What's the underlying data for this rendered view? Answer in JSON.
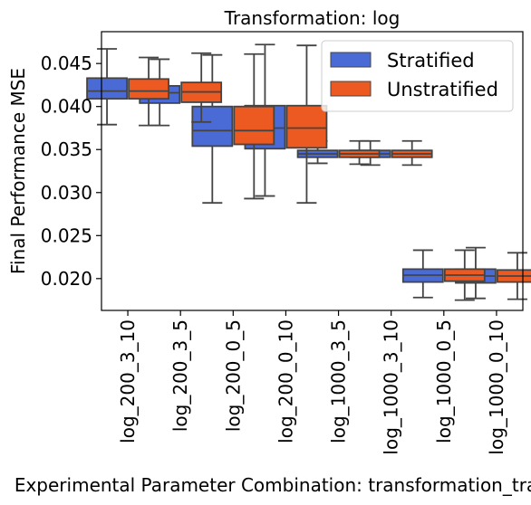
{
  "chart_data": {
    "type": "boxplot",
    "title": "Transformation: log",
    "xlabel": "Experimental Parameter Combination: transformation_tra",
    "ylabel": "Final Performance MSE",
    "ylim": [
      0.0163,
      0.0487
    ],
    "yticks": [
      "0.020",
      "0.025",
      "0.030",
      "0.035",
      "0.040",
      "0.045"
    ],
    "categories": [
      "log_200_3_10",
      "log_200_3_5",
      "log_200_0_5",
      "log_200_0_10",
      "log_1000_3_5",
      "log_1000_3_10",
      "log_1000_0_5",
      "log_1000_0_10"
    ],
    "legend_position": "top-right",
    "series": [
      {
        "name": "Stratified",
        "color": "#4a6bd6",
        "boxes": [
          {
            "whislo": 0.0379,
            "q1": 0.0409,
            "med": 0.0418,
            "q3": 0.0433,
            "whishi": 0.0467
          },
          {
            "whislo": 0.0378,
            "q1": 0.0404,
            "med": 0.0416,
            "q3": 0.0424,
            "whishi": 0.0455
          },
          {
            "whislo": 0.0288,
            "q1": 0.0354,
            "med": 0.0372,
            "q3": 0.04,
            "whishi": 0.046
          },
          {
            "whislo": 0.0296,
            "q1": 0.0351,
            "med": 0.0375,
            "q3": 0.0401,
            "whishi": 0.0472
          },
          {
            "whislo": 0.0334,
            "q1": 0.0341,
            "med": 0.0345,
            "q3": 0.0349,
            "whishi": 0.036
          },
          {
            "whislo": 0.0332,
            "q1": 0.0341,
            "med": 0.0345,
            "q3": 0.0349,
            "whishi": 0.036
          },
          {
            "whislo": 0.0178,
            "q1": 0.0196,
            "med": 0.0204,
            "q3": 0.0211,
            "whishi": 0.0233
          },
          {
            "whislo": 0.0177,
            "q1": 0.0195,
            "med": 0.0203,
            "q3": 0.0211,
            "whishi": 0.0236
          }
        ]
      },
      {
        "name": "Unstratified",
        "color": "#ec5a22",
        "boxes": [
          {
            "whislo": 0.0378,
            "q1": 0.0409,
            "med": 0.0418,
            "q3": 0.0432,
            "whishi": 0.0457
          },
          {
            "whislo": 0.0382,
            "q1": 0.0405,
            "med": 0.0417,
            "q3": 0.0428,
            "whishi": 0.0462
          },
          {
            "whislo": 0.0293,
            "q1": 0.0356,
            "med": 0.0372,
            "q3": 0.04,
            "whishi": 0.0461
          },
          {
            "whislo": 0.0288,
            "q1": 0.0352,
            "med": 0.0375,
            "q3": 0.0401,
            "whishi": 0.0471
          },
          {
            "whislo": 0.0333,
            "q1": 0.0341,
            "med": 0.0345,
            "q3": 0.0349,
            "whishi": 0.036
          },
          {
            "whislo": 0.0332,
            "q1": 0.0341,
            "med": 0.0345,
            "q3": 0.0349,
            "whishi": 0.036
          },
          {
            "whislo": 0.0175,
            "q1": 0.0197,
            "med": 0.0204,
            "q3": 0.0211,
            "whishi": 0.0233
          },
          {
            "whislo": 0.0176,
            "q1": 0.0196,
            "med": 0.0203,
            "q3": 0.021,
            "whishi": 0.023
          }
        ]
      }
    ]
  }
}
